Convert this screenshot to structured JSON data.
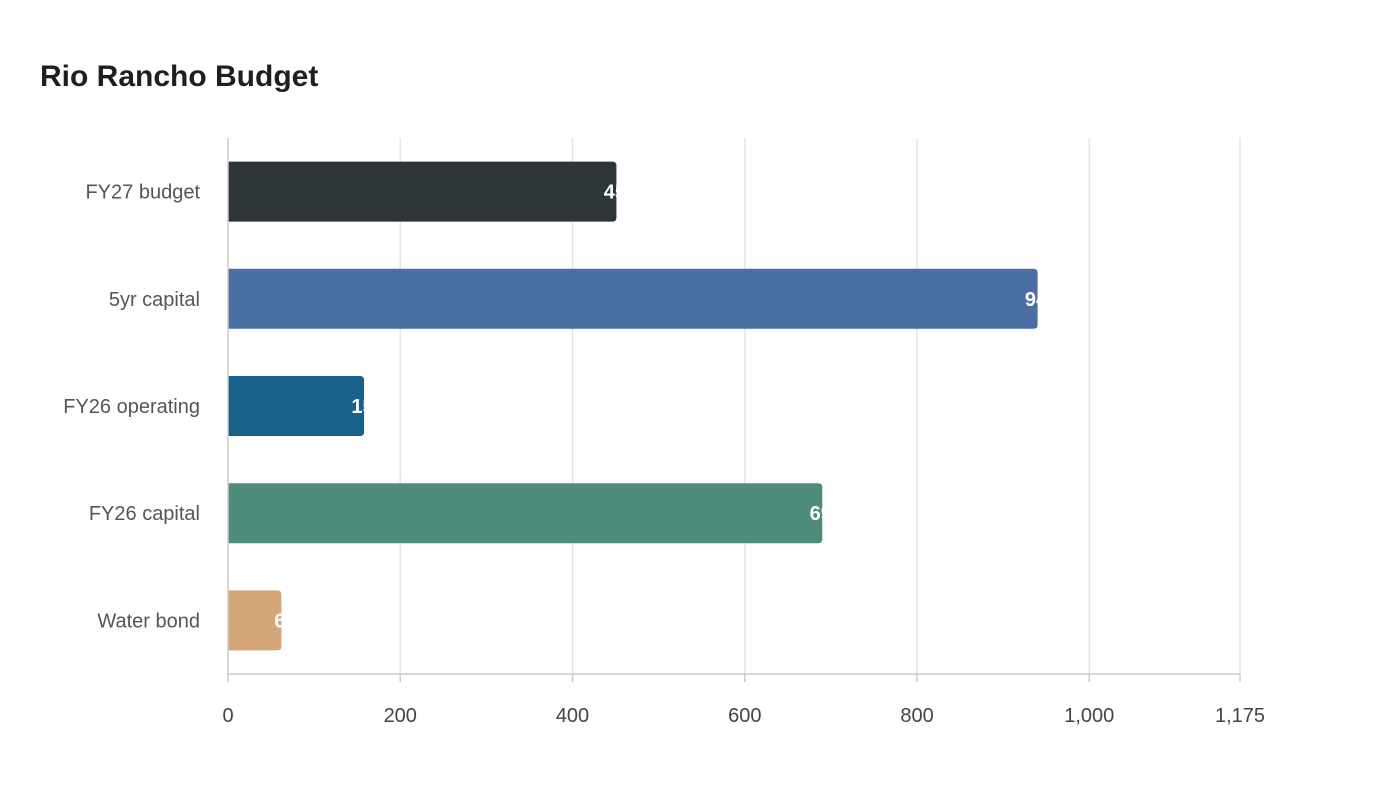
{
  "chart_data": {
    "type": "bar",
    "orientation": "horizontal",
    "title": "Rio Rancho Budget",
    "xlabel": "",
    "ylabel": "",
    "categories": [
      "FY27 budget",
      "5yr capital",
      "FY26 operating",
      "FY26 capital",
      "Water bond"
    ],
    "values": [
      451,
      940,
      158,
      690,
      62
    ],
    "colors": [
      "#2e3538",
      "#4a6fa3",
      "#18618a",
      "#4e8c7b",
      "#d4a677"
    ],
    "xlim": [
      0,
      1175
    ],
    "ticks": [
      0,
      200,
      400,
      600,
      800,
      1000,
      1175
    ],
    "tick_labels": [
      "0",
      "200",
      "400",
      "600",
      "800",
      "1,000",
      "1,175"
    ],
    "grid": true,
    "legend": "none"
  }
}
